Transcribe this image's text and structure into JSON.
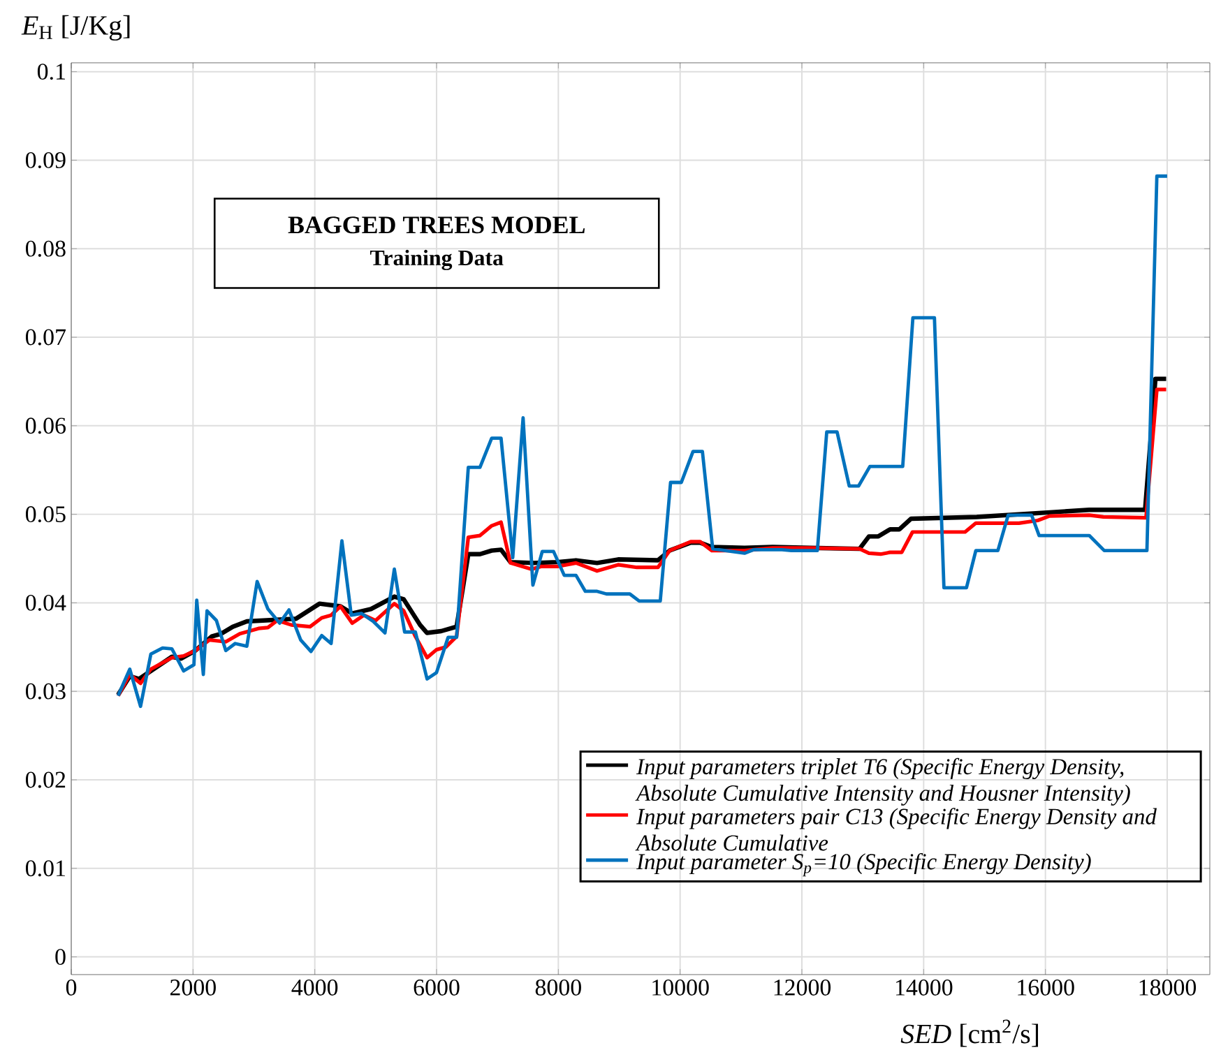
{
  "chart_data": {
    "type": "line",
    "title": "BAGGED TREES MODEL",
    "subtitle": "Training Data",
    "xlabel": "*SED* [cm$^{2}$/s]",
    "ylabel": "*E*$_{H}$  [J/Kg]",
    "xlim": [
      0,
      18700
    ],
    "ylim": [
      -0.002,
      0.101
    ],
    "xticks": [
      0,
      2000,
      4000,
      6000,
      8000,
      10000,
      12000,
      14000,
      16000,
      18000
    ],
    "yticks": [
      0,
      0.01,
      0.02,
      0.03,
      0.04,
      0.05,
      0.06,
      0.07,
      0.08,
      0.09,
      0.1
    ],
    "grid": true,
    "legend": "bottom right",
    "marker": "none",
    "line_style": "solid",
    "series": [
      {
        "name": "Input parameters triplet T6 (Specific Energy Density, Absolute Cumulative Intensity and Housner Intensity)",
        "color": "#000000",
        "x": [
          769,
          961,
          1115,
          1653,
          1807,
          2038,
          2307,
          2461,
          2653,
          2884,
          3691,
          4076,
          4422,
          4614,
          4922,
          5306,
          5460,
          5729,
          5844,
          6075,
          6329,
          6521,
          6713,
          6905,
          7059,
          7213,
          7598,
          7982,
          8290,
          8636,
          8982,
          9636,
          9828,
          10174,
          10328,
          10520,
          11058,
          11519,
          12135,
          12947,
          13101,
          13255,
          13448,
          13602,
          13794,
          14872,
          16027,
          16720,
          17637,
          17806,
          17983
        ],
        "values": [
          0.0296,
          0.0317,
          0.0314,
          0.0339,
          0.0337,
          0.0346,
          0.0362,
          0.0365,
          0.0373,
          0.0379,
          0.0382,
          0.0399,
          0.0396,
          0.0388,
          0.0393,
          0.0407,
          0.0404,
          0.0375,
          0.0366,
          0.0368,
          0.0373,
          0.0455,
          0.0455,
          0.0459,
          0.046,
          0.0446,
          0.0445,
          0.0446,
          0.0448,
          0.0445,
          0.0449,
          0.0448,
          0.0459,
          0.0468,
          0.0468,
          0.0463,
          0.0462,
          0.0463,
          0.0462,
          0.0461,
          0.0475,
          0.0475,
          0.0483,
          0.0483,
          0.0495,
          0.0497,
          0.0502,
          0.0505,
          0.0505,
          0.0653,
          0.0653
        ]
      },
      {
        "name": "Input parameters pair C13 (Specific Energy Density and Absolute Cumulative",
        "color": "#ff0000",
        "x": [
          769,
          961,
          1138,
          1307,
          1653,
          1846,
          2038,
          2269,
          2538,
          2768,
          3076,
          3230,
          3384,
          3614,
          3922,
          4114,
          4268,
          4422,
          4614,
          4806,
          4999,
          5306,
          5460,
          5652,
          5844,
          5998,
          6152,
          6329,
          6521,
          6713,
          6905,
          7059,
          7213,
          7559,
          7713,
          7982,
          8290,
          8636,
          8982,
          9289,
          9636,
          9828,
          10174,
          10328,
          10520,
          11058,
          11519,
          12135,
          12947,
          13101,
          13294,
          13448,
          13640,
          13817,
          14680,
          14857,
          15565,
          15873,
          16066,
          16720,
          16951,
          17652,
          17830,
          17983
        ],
        "values": [
          0.0295,
          0.0319,
          0.0309,
          0.0325,
          0.0338,
          0.034,
          0.0346,
          0.0358,
          0.0356,
          0.0365,
          0.0371,
          0.0372,
          0.038,
          0.0375,
          0.0373,
          0.0383,
          0.0386,
          0.0396,
          0.0377,
          0.0386,
          0.038,
          0.0399,
          0.0391,
          0.0362,
          0.0338,
          0.0347,
          0.035,
          0.0362,
          0.0474,
          0.0476,
          0.0487,
          0.0491,
          0.0445,
          0.0438,
          0.0441,
          0.0441,
          0.0445,
          0.0436,
          0.0443,
          0.044,
          0.044,
          0.0459,
          0.0469,
          0.0469,
          0.0459,
          0.0459,
          0.0462,
          0.0462,
          0.0461,
          0.0456,
          0.0455,
          0.0457,
          0.0457,
          0.048,
          0.048,
          0.049,
          0.049,
          0.0493,
          0.0498,
          0.0499,
          0.0497,
          0.0496,
          0.0641,
          0.0641
        ]
      },
      {
        "name": "Input parameter S$_{p}$=10 (Specific Energy Density)",
        "color": "#0072bd",
        "x": [
          769,
          961,
          1138,
          1307,
          1500,
          1653,
          1846,
          2015,
          2061,
          2169,
          2230,
          2384,
          2538,
          2692,
          2884,
          3053,
          3230,
          3422,
          3576,
          3768,
          3937,
          4114,
          4268,
          4445,
          4599,
          4768,
          4960,
          5152,
          5306,
          5475,
          5652,
          5844,
          5998,
          6190,
          6329,
          6521,
          6713,
          6905,
          7059,
          7251,
          7421,
          7582,
          7736,
          7921,
          8097,
          8290,
          8443,
          8636,
          8790,
          9174,
          9328,
          9674,
          9843,
          10020,
          10212,
          10366,
          10535,
          11058,
          11212,
          11673,
          11827,
          12135,
          12254,
          12408,
          12578,
          12777,
          12932,
          13117,
          13656,
          13823,
          14177,
          14333,
          14703,
          14857,
          15219,
          15388,
          15773,
          15896,
          16720,
          16966,
          17667,
          17830,
          17999
        ],
        "values": [
          0.0295,
          0.0325,
          0.0283,
          0.0342,
          0.0349,
          0.0348,
          0.0323,
          0.033,
          0.0403,
          0.0319,
          0.0391,
          0.038,
          0.0346,
          0.0354,
          0.0351,
          0.0424,
          0.0393,
          0.0377,
          0.0392,
          0.0358,
          0.0345,
          0.0363,
          0.0354,
          0.047,
          0.0386,
          0.0388,
          0.0379,
          0.0366,
          0.0438,
          0.0367,
          0.0367,
          0.0314,
          0.0321,
          0.0361,
          0.0361,
          0.0553,
          0.0553,
          0.0586,
          0.0586,
          0.0451,
          0.0609,
          0.042,
          0.0458,
          0.0458,
          0.0431,
          0.0431,
          0.0413,
          0.0413,
          0.041,
          0.041,
          0.0402,
          0.0402,
          0.0536,
          0.0536,
          0.0571,
          0.0571,
          0.0461,
          0.0456,
          0.046,
          0.046,
          0.0459,
          0.0459,
          0.0459,
          0.0593,
          0.0593,
          0.0532,
          0.0532,
          0.0554,
          0.0554,
          0.0722,
          0.0722,
          0.0417,
          0.0417,
          0.0459,
          0.0459,
          0.0499,
          0.0499,
          0.0476,
          0.0476,
          0.0459,
          0.0459,
          0.0882,
          0.0882
        ]
      }
    ]
  }
}
